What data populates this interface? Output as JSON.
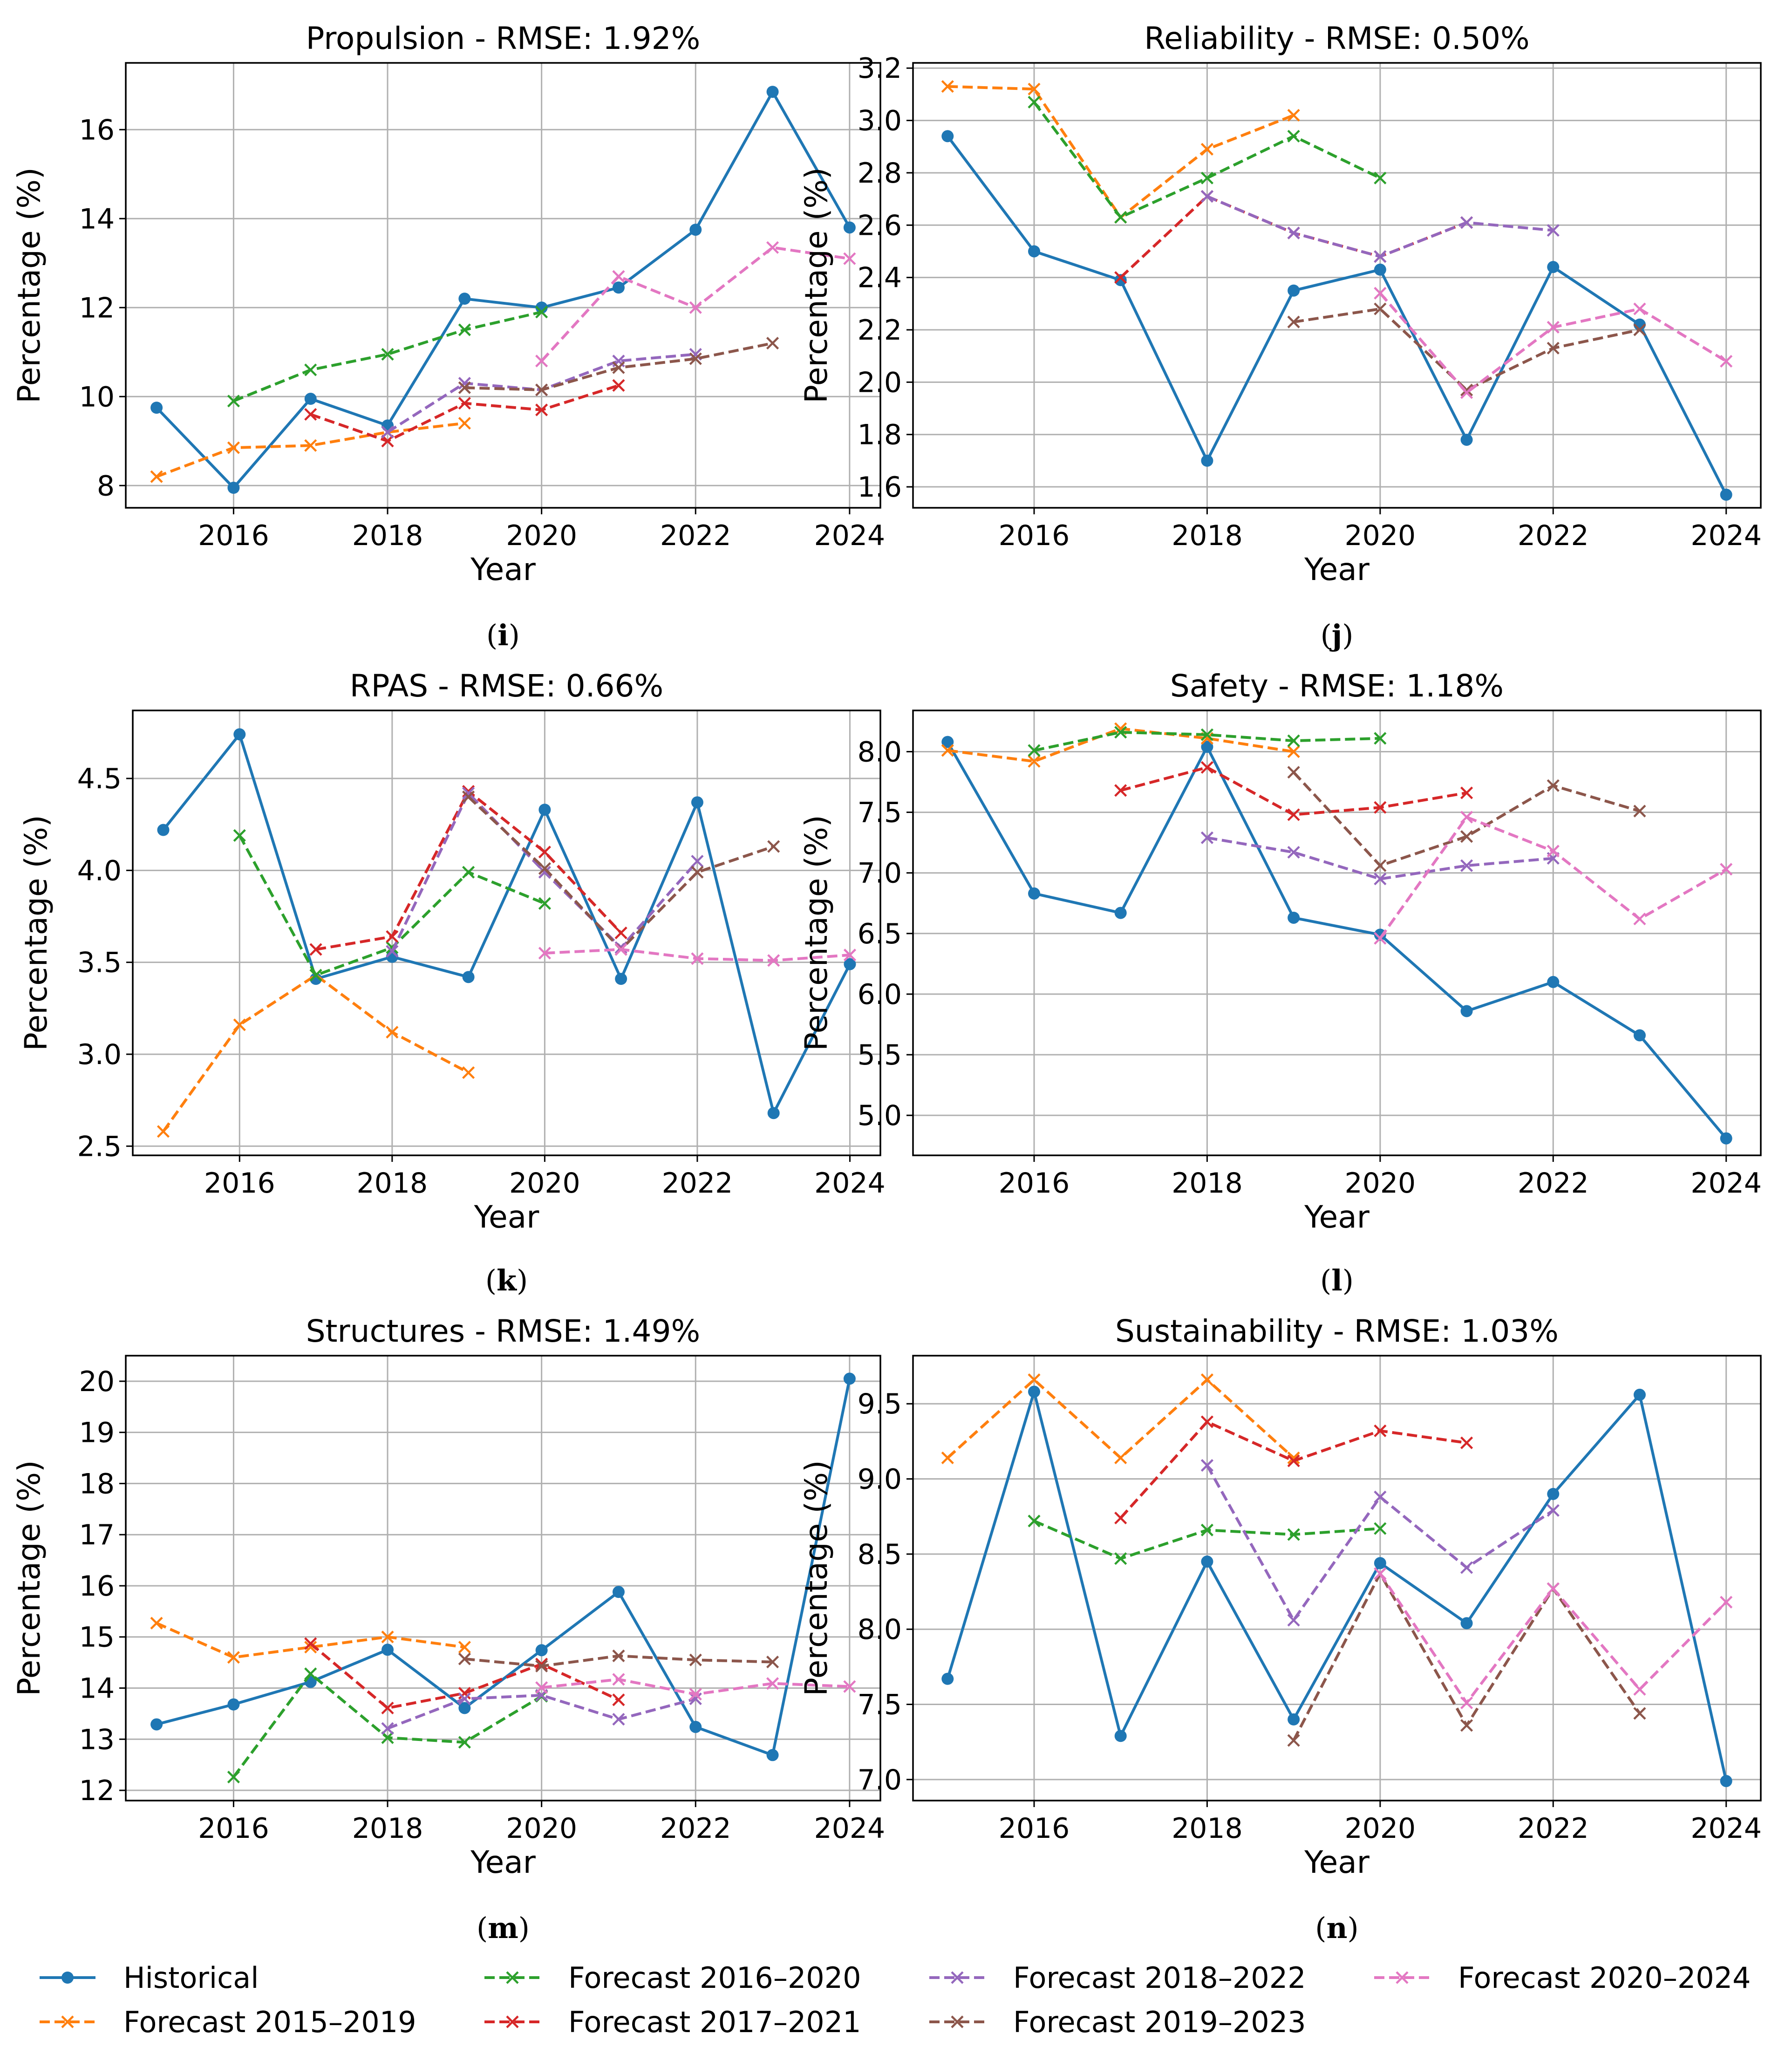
{
  "colors": {
    "historical": "#1f77b4",
    "f2015": "#ff7f0e",
    "f2016": "#2ca02c",
    "f2017": "#d62728",
    "f2018": "#9467bd",
    "f2019": "#8c564b",
    "f2020": "#e377c2",
    "grid": "#b0b0b0"
  },
  "legend": [
    {
      "key": "historical",
      "label": "Historical",
      "marker": "circle",
      "dash": "solid"
    },
    {
      "key": "f2015",
      "label": "Forecast 2015–2019",
      "marker": "x",
      "dash": "dashed"
    },
    {
      "key": "f2016",
      "label": "Forecast 2016–2020",
      "marker": "x",
      "dash": "dashed"
    },
    {
      "key": "f2017",
      "label": "Forecast 2017–2021",
      "marker": "x",
      "dash": "dashed"
    },
    {
      "key": "f2018",
      "label": "Forecast 2018–2022",
      "marker": "x",
      "dash": "dashed"
    },
    {
      "key": "f2019",
      "label": "Forecast 2019–2023",
      "marker": "x",
      "dash": "dashed"
    },
    {
      "key": "f2020",
      "label": "Forecast 2020–2024",
      "marker": "x",
      "dash": "dashed"
    }
  ],
  "chart_data": [
    {
      "type": "line",
      "caption": "i",
      "title": "Propulsion - RMSE: 1.92%",
      "xlabel": "Year",
      "ylabel": "Percentage (%)",
      "xlim": [
        2014.6,
        2024.4
      ],
      "ylim": [
        7.5,
        17.5
      ],
      "xticks": [
        "2016",
        "2018",
        "2020",
        "2022",
        "2024"
      ],
      "yticks": [
        "8",
        "10",
        "12",
        "14",
        "16"
      ],
      "grid": true,
      "series": [
        {
          "key": "historical",
          "name": "Historical",
          "x": [
            2015,
            2016,
            2017,
            2018,
            2019,
            2020,
            2021,
            2022,
            2023,
            2024
          ],
          "values": [
            9.75,
            7.95,
            9.95,
            9.35,
            12.2,
            12.0,
            12.45,
            13.75,
            16.85,
            13.8
          ]
        },
        {
          "key": "f2015",
          "name": "Forecast 2015–2019",
          "x": [
            2015,
            2016,
            2017,
            2018,
            2019
          ],
          "values": [
            8.2,
            8.85,
            8.9,
            9.2,
            9.4
          ]
        },
        {
          "key": "f2016",
          "name": "Forecast 2016–2020",
          "x": [
            2016,
            2017,
            2018,
            2019,
            2020
          ],
          "values": [
            9.9,
            10.6,
            10.95,
            11.5,
            11.9
          ]
        },
        {
          "key": "f2017",
          "name": "Forecast 2017–2021",
          "x": [
            2017,
            2018,
            2019,
            2020,
            2021
          ],
          "values": [
            9.6,
            9.0,
            9.85,
            9.7,
            10.25
          ]
        },
        {
          "key": "f2018",
          "name": "Forecast 2018–2022",
          "x": [
            2018,
            2019,
            2020,
            2021,
            2022
          ],
          "values": [
            9.2,
            10.3,
            10.15,
            10.8,
            10.95
          ]
        },
        {
          "key": "f2019",
          "name": "Forecast 2019–2023",
          "x": [
            2019,
            2020,
            2021,
            2022,
            2023
          ],
          "values": [
            10.2,
            10.15,
            10.65,
            10.85,
            11.2
          ]
        },
        {
          "key": "f2020",
          "name": "Forecast 2020–2024",
          "x": [
            2020,
            2021,
            2022,
            2023,
            2024
          ],
          "values": [
            10.8,
            12.7,
            12.0,
            13.35,
            13.1
          ]
        }
      ]
    },
    {
      "type": "line",
      "caption": "j",
      "title": "Reliability - RMSE: 0.50%",
      "xlabel": "Year",
      "ylabel": "Percentage (%)",
      "xlim": [
        2014.6,
        2024.4
      ],
      "ylim": [
        1.52,
        3.22
      ],
      "xticks": [
        "2016",
        "2018",
        "2020",
        "2022",
        "2024"
      ],
      "yticks": [
        "1.6",
        "1.8",
        "2.0",
        "2.2",
        "2.4",
        "2.6",
        "2.8",
        "3.0",
        "3.2"
      ],
      "grid": true,
      "series": [
        {
          "key": "historical",
          "name": "Historical",
          "x": [
            2015,
            2016,
            2017,
            2018,
            2019,
            2020,
            2021,
            2022,
            2023,
            2024
          ],
          "values": [
            2.94,
            2.5,
            2.39,
            1.7,
            2.35,
            2.43,
            1.78,
            2.44,
            2.22,
            1.57
          ]
        },
        {
          "key": "f2015",
          "name": "Forecast 2015–2019",
          "x": [
            2015,
            2016,
            2017,
            2018,
            2019
          ],
          "values": [
            3.13,
            3.12,
            2.63,
            2.89,
            3.02
          ]
        },
        {
          "key": "f2016",
          "name": "Forecast 2016–2020",
          "x": [
            2016,
            2017,
            2018,
            2019,
            2020
          ],
          "values": [
            3.07,
            2.63,
            2.78,
            2.94,
            2.78
          ]
        },
        {
          "key": "f2017",
          "name": "Forecast 2017–2021",
          "x": [
            2017,
            2018,
            2019,
            2020,
            2021
          ],
          "values": [
            2.4,
            2.71,
            2.57,
            2.48,
            2.61
          ]
        },
        {
          "key": "f2018",
          "name": "Forecast 2018–2022",
          "x": [
            2018,
            2019,
            2020,
            2021,
            2022
          ],
          "values": [
            2.71,
            2.57,
            2.48,
            2.61,
            2.58
          ]
        },
        {
          "key": "f2019",
          "name": "Forecast 2019–2023",
          "x": [
            2019,
            2020,
            2021,
            2022,
            2023
          ],
          "values": [
            2.23,
            2.28,
            1.97,
            2.13,
            2.2
          ]
        },
        {
          "key": "f2020",
          "name": "Forecast 2020–2024",
          "x": [
            2020,
            2021,
            2022,
            2023,
            2024
          ],
          "values": [
            2.34,
            1.96,
            2.21,
            2.28,
            2.08
          ]
        }
      ]
    },
    {
      "type": "line",
      "caption": "k",
      "title": "RPAS - RMSE: 0.66%",
      "xlabel": "Year",
      "ylabel": "Percentage (%)",
      "xlim": [
        2014.6,
        2024.4
      ],
      "ylim": [
        2.45,
        4.87
      ],
      "xticks": [
        "2016",
        "2018",
        "2020",
        "2022",
        "2024"
      ],
      "yticks": [
        "2.5",
        "3.0",
        "3.5",
        "4.0",
        "4.5"
      ],
      "grid": true,
      "series": [
        {
          "key": "historical",
          "name": "Historical",
          "x": [
            2015,
            2016,
            2017,
            2018,
            2019,
            2020,
            2021,
            2022,
            2023,
            2024
          ],
          "values": [
            4.22,
            4.74,
            3.41,
            3.53,
            3.42,
            4.33,
            3.41,
            4.37,
            2.68,
            3.49
          ]
        },
        {
          "key": "f2015",
          "name": "Forecast 2015–2019",
          "x": [
            2015,
            2016,
            2017,
            2018,
            2019
          ],
          "values": [
            2.58,
            3.16,
            3.43,
            3.12,
            2.9
          ]
        },
        {
          "key": "f2016",
          "name": "Forecast 2016–2020",
          "x": [
            2016,
            2017,
            2018,
            2019,
            2020
          ],
          "values": [
            4.19,
            3.43,
            3.58,
            3.99,
            3.82
          ]
        },
        {
          "key": "f2017",
          "name": "Forecast 2017–2021",
          "x": [
            2017,
            2018,
            2019,
            2020,
            2021
          ],
          "values": [
            3.57,
            3.64,
            4.43,
            4.1,
            3.66
          ]
        },
        {
          "key": "f2018",
          "name": "Forecast 2018–2022",
          "x": [
            2018,
            2019,
            2020,
            2021,
            2022
          ],
          "values": [
            3.56,
            4.42,
            3.99,
            3.58,
            4.05
          ]
        },
        {
          "key": "f2019",
          "name": "Forecast 2019–2023",
          "x": [
            2019,
            2020,
            2021,
            2022,
            2023
          ],
          "values": [
            4.4,
            4.01,
            3.57,
            3.99,
            4.13
          ]
        },
        {
          "key": "f2020",
          "name": "Forecast 2020–2024",
          "x": [
            2020,
            2021,
            2022,
            2023,
            2024
          ],
          "values": [
            3.55,
            3.57,
            3.52,
            3.51,
            3.54
          ]
        }
      ]
    },
    {
      "type": "line",
      "caption": "l",
      "title": "Safety - RMSE: 1.18%",
      "xlabel": "Year",
      "ylabel": "Percentage (%)",
      "xlim": [
        2014.6,
        2024.4
      ],
      "ylim": [
        4.67,
        8.34
      ],
      "xticks": [
        "2016",
        "2018",
        "2020",
        "2022",
        "2024"
      ],
      "yticks": [
        "5.0",
        "5.5",
        "6.0",
        "6.5",
        "7.0",
        "7.5",
        "8.0"
      ],
      "grid": true,
      "series": [
        {
          "key": "historical",
          "name": "Historical",
          "x": [
            2015,
            2016,
            2017,
            2018,
            2019,
            2020,
            2021,
            2022,
            2023,
            2024
          ],
          "values": [
            8.08,
            6.83,
            6.67,
            8.04,
            6.63,
            6.49,
            5.86,
            6.1,
            5.66,
            4.81
          ]
        },
        {
          "key": "f2015",
          "name": "Forecast 2015–2019",
          "x": [
            2015,
            2016,
            2017,
            2018,
            2019
          ],
          "values": [
            8.01,
            7.92,
            8.19,
            8.11,
            8.0
          ]
        },
        {
          "key": "f2016",
          "name": "Forecast 2016–2020",
          "x": [
            2016,
            2017,
            2018,
            2019,
            2020
          ],
          "values": [
            8.01,
            8.16,
            8.14,
            8.09,
            8.11
          ]
        },
        {
          "key": "f2017",
          "name": "Forecast 2017–2021",
          "x": [
            2017,
            2018,
            2019,
            2020,
            2021
          ],
          "values": [
            7.68,
            7.87,
            7.48,
            7.54,
            7.66
          ]
        },
        {
          "key": "f2018",
          "name": "Forecast 2018–2022",
          "x": [
            2018,
            2019,
            2020,
            2021,
            2022
          ],
          "values": [
            7.29,
            7.17,
            6.95,
            7.06,
            7.12
          ]
        },
        {
          "key": "f2019",
          "name": "Forecast 2019–2023",
          "x": [
            2019,
            2020,
            2021,
            2022,
            2023
          ],
          "values": [
            7.83,
            7.06,
            7.3,
            7.72,
            7.51
          ]
        },
        {
          "key": "f2020",
          "name": "Forecast 2020–2024",
          "x": [
            2020,
            2021,
            2022,
            2023,
            2024
          ],
          "values": [
            6.46,
            7.46,
            7.18,
            6.62,
            7.03
          ]
        }
      ]
    },
    {
      "type": "line",
      "caption": "m",
      "title": "Structures - RMSE: 1.49%",
      "xlabel": "Year",
      "ylabel": "Percentage (%)",
      "xlim": [
        2014.6,
        2024.4
      ],
      "ylim": [
        11.8,
        20.5
      ],
      "xticks": [
        "2016",
        "2018",
        "2020",
        "2022",
        "2024"
      ],
      "yticks": [
        "12",
        "13",
        "14",
        "15",
        "16",
        "17",
        "18",
        "19",
        "20"
      ],
      "grid": true,
      "series": [
        {
          "key": "historical",
          "name": "Historical",
          "x": [
            2015,
            2016,
            2017,
            2018,
            2019,
            2020,
            2021,
            2022,
            2023,
            2024
          ],
          "values": [
            13.29,
            13.68,
            14.12,
            14.75,
            13.61,
            14.74,
            15.88,
            13.24,
            12.69,
            20.05
          ]
        },
        {
          "key": "f2015",
          "name": "Forecast 2015–2019",
          "x": [
            2015,
            2016,
            2017,
            2018,
            2019
          ],
          "values": [
            15.27,
            14.6,
            14.8,
            15.0,
            14.8
          ]
        },
        {
          "key": "f2016",
          "name": "Forecast 2016–2020",
          "x": [
            2016,
            2017,
            2018,
            2019,
            2020
          ],
          "values": [
            12.26,
            14.28,
            13.03,
            12.94,
            13.84
          ]
        },
        {
          "key": "f2017",
          "name": "Forecast 2017–2021",
          "x": [
            2017,
            2018,
            2019,
            2020,
            2021
          ],
          "values": [
            14.87,
            13.61,
            13.9,
            14.47,
            13.77
          ]
        },
        {
          "key": "f2018",
          "name": "Forecast 2018–2022",
          "x": [
            2018,
            2019,
            2020,
            2021,
            2022
          ],
          "values": [
            13.21,
            13.79,
            13.86,
            13.39,
            13.79
          ]
        },
        {
          "key": "f2019",
          "name": "Forecast 2019–2023",
          "x": [
            2019,
            2020,
            2021,
            2022,
            2023
          ],
          "values": [
            14.57,
            14.43,
            14.63,
            14.55,
            14.51
          ]
        },
        {
          "key": "f2020",
          "name": "Forecast 2020–2024",
          "x": [
            2020,
            2021,
            2022,
            2023,
            2024
          ],
          "values": [
            14.01,
            14.17,
            13.88,
            14.09,
            14.03
          ]
        }
      ]
    },
    {
      "type": "line",
      "caption": "n",
      "title": "Sustainability - RMSE: 1.03%",
      "xlabel": "Year",
      "ylabel": "Percentage (%)",
      "xlim": [
        2014.6,
        2024.4
      ],
      "ylim": [
        6.86,
        9.82
      ],
      "xticks": [
        "2016",
        "2018",
        "2020",
        "2022",
        "2024"
      ],
      "yticks": [
        "7.0",
        "7.5",
        "8.0",
        "8.5",
        "9.0",
        "9.5"
      ],
      "grid": true,
      "series": [
        {
          "key": "historical",
          "name": "Historical",
          "x": [
            2015,
            2016,
            2017,
            2018,
            2019,
            2020,
            2021,
            2022,
            2023,
            2024
          ],
          "values": [
            7.67,
            9.58,
            7.29,
            8.45,
            7.4,
            8.44,
            8.04,
            8.9,
            9.56,
            6.99
          ]
        },
        {
          "key": "f2015",
          "name": "Forecast 2015–2019",
          "x": [
            2015,
            2016,
            2017,
            2018,
            2019
          ],
          "values": [
            9.14,
            9.66,
            9.14,
            9.66,
            9.14
          ]
        },
        {
          "key": "f2016",
          "name": "Forecast 2016–2020",
          "x": [
            2016,
            2017,
            2018,
            2019,
            2020
          ],
          "values": [
            8.72,
            8.47,
            8.66,
            8.63,
            8.67
          ]
        },
        {
          "key": "f2017",
          "name": "Forecast 2017–2021",
          "x": [
            2017,
            2018,
            2019,
            2020,
            2021
          ],
          "values": [
            8.74,
            9.38,
            9.12,
            9.32,
            9.24
          ]
        },
        {
          "key": "f2018",
          "name": "Forecast 2018–2022",
          "x": [
            2018,
            2019,
            2020,
            2021,
            2022
          ],
          "values": [
            9.09,
            8.06,
            8.88,
            8.41,
            8.79
          ]
        },
        {
          "key": "f2019",
          "name": "Forecast 2019–2023",
          "x": [
            2019,
            2020,
            2021,
            2022,
            2023
          ],
          "values": [
            7.26,
            8.37,
            7.36,
            8.27,
            7.44
          ]
        },
        {
          "key": "f2020",
          "name": "Forecast 2020–2024",
          "x": [
            2020,
            2021,
            2022,
            2023,
            2024
          ],
          "values": [
            8.37,
            7.51,
            8.27,
            7.6,
            8.18
          ]
        }
      ]
    }
  ]
}
